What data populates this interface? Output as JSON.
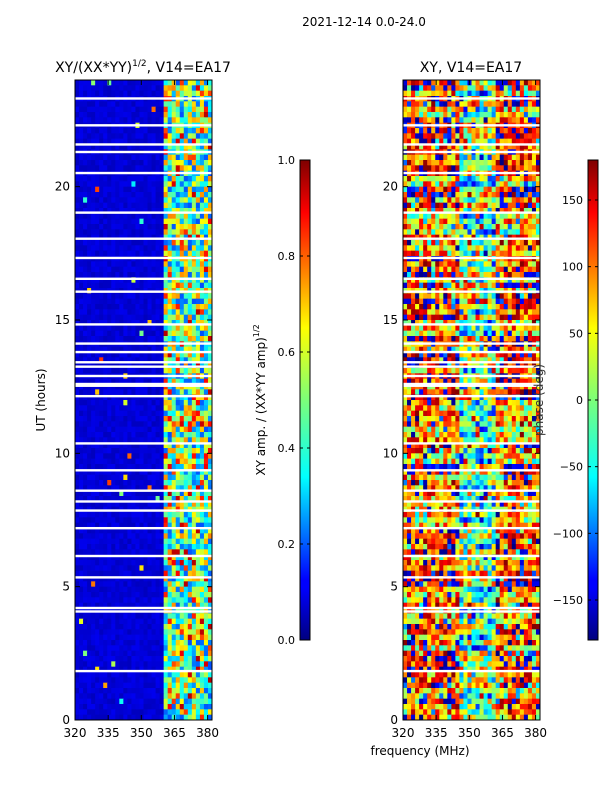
{
  "figure_title": "2021-12-14 0.0-24.0",
  "xlabel_shared": "frequency (MHz)",
  "chart_data": [
    {
      "type": "heatmap",
      "title_text": "XY/(XX*YY)",
      "title_sup": "1/2",
      "title_suffix": ", V14=EA17",
      "ylabel": "UT (hours)",
      "x_ticks": [
        320,
        335,
        350,
        365,
        380
      ],
      "x_range": [
        320,
        382
      ],
      "y_ticks": [
        0,
        5,
        10,
        15,
        20
      ],
      "y_range": [
        0,
        24
      ],
      "bright_band_mhz": [
        360,
        382
      ],
      "colorbar": {
        "label_text": "XY amp. / (XX*YY amp)",
        "label_sup": "1/2",
        "range": [
          0.0,
          1.0
        ],
        "ticks": [
          "0.0",
          "0.2",
          "0.4",
          "0.6",
          "0.8",
          "1.0"
        ],
        "colormap": "jet"
      }
    },
    {
      "type": "heatmap",
      "title_text": "XY, V14=EA17",
      "ylabel": "",
      "x_ticks": [
        320,
        335,
        350,
        365,
        380
      ],
      "x_range": [
        320,
        382
      ],
      "y_ticks": [
        0,
        5,
        10,
        15,
        20
      ],
      "y_range": [
        0,
        24
      ],
      "colorbar": {
        "label_text": "phase (deg)",
        "range": [
          -180,
          180
        ],
        "ticks": [
          "−150",
          "−100",
          "−50",
          "0",
          "50",
          "100",
          "150"
        ],
        "tick_values": [
          -150,
          -100,
          -50,
          0,
          50,
          100,
          150
        ],
        "colormap": "jet"
      }
    }
  ]
}
